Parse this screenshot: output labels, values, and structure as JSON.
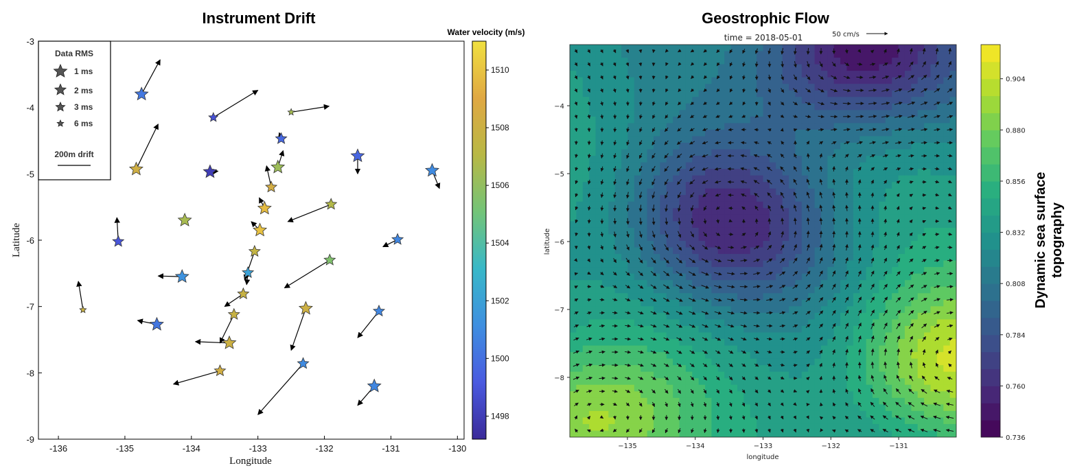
{
  "chart_data": [
    {
      "type": "scatter",
      "title": "Instrument Drift",
      "xlabel": "Longitude",
      "ylabel": "Latitude",
      "xlim": [
        -136.3,
        -129.9
      ],
      "ylim": [
        -9,
        -3
      ],
      "x_ticks": [
        "-136",
        "-135",
        "-134",
        "-133",
        "-132",
        "-131",
        "-130"
      ],
      "y_ticks": [
        "-3",
        "-4",
        "-5",
        "-6",
        "-7",
        "-8",
        "-9"
      ],
      "grid": false,
      "legend": {
        "placement": "top-left",
        "title": "Data RMS",
        "entries": [
          "1 ms",
          "2 ms",
          "3 ms",
          "6 ms"
        ],
        "drift_label": "200m drift"
      },
      "colorbar": {
        "label": "Water velocity (m/s)",
        "range": [
          1497.2,
          1511.0
        ],
        "ticks": [
          "1498",
          "1500",
          "1502",
          "1504",
          "1506",
          "1508",
          "1510"
        ],
        "colors": [
          "#3a2a99",
          "#4a5ae0",
          "#3f8fe0",
          "#38b8c8",
          "#73c478",
          "#b8b845",
          "#e0a843",
          "#f0e040"
        ]
      },
      "points": [
        {
          "lon": -134.75,
          "lat": -3.8,
          "velocity": 1500.3,
          "rms": 1,
          "drift_end": [
            -134.47,
            -3.28
          ]
        },
        {
          "lon": -133.67,
          "lat": -4.15,
          "velocity": 1498.8,
          "rms": 3,
          "drift_end": [
            -133.0,
            -3.74
          ]
        },
        {
          "lon": -132.5,
          "lat": -4.07,
          "velocity": 1506.5,
          "rms": 6,
          "drift_end": [
            -131.93,
            -3.98
          ]
        },
        {
          "lon": -134.83,
          "lat": -4.93,
          "velocity": 1508.2,
          "rms": 1,
          "drift_end": [
            -134.5,
            -4.25
          ]
        },
        {
          "lon": -133.72,
          "lat": -4.97,
          "velocity": 1498.0,
          "rms": 1,
          "drift_end": [
            -133.6,
            -4.96
          ]
        },
        {
          "lon": -132.65,
          "lat": -4.47,
          "velocity": 1499.7,
          "rms": 2,
          "drift_end": [
            -132.68,
            -4.38
          ]
        },
        {
          "lon": -132.7,
          "lat": -4.9,
          "velocity": 1506.3,
          "rms": 1,
          "drift_end": [
            -132.62,
            -4.65
          ]
        },
        {
          "lon": -132.8,
          "lat": -5.2,
          "velocity": 1508.4,
          "rms": 2,
          "drift_end": [
            -132.87,
            -4.88
          ]
        },
        {
          "lon": -132.9,
          "lat": -5.52,
          "velocity": 1509.7,
          "rms": 1,
          "drift_end": [
            -132.98,
            -5.36
          ]
        },
        {
          "lon": -131.5,
          "lat": -4.73,
          "velocity": 1499.6,
          "rms": 1,
          "drift_end": [
            -131.5,
            -5.0
          ]
        },
        {
          "lon": -130.38,
          "lat": -4.95,
          "velocity": 1501.0,
          "rms": 1,
          "drift_end": [
            -130.27,
            -5.22
          ]
        },
        {
          "lon": -131.9,
          "lat": -5.46,
          "velocity": 1506.9,
          "rms": 2,
          "drift_end": [
            -132.55,
            -5.72
          ]
        },
        {
          "lon": -134.1,
          "lat": -5.7,
          "velocity": 1506.6,
          "rms": 1,
          "drift_end": [
            -134.1,
            -5.7
          ]
        },
        {
          "lon": -132.97,
          "lat": -5.85,
          "velocity": 1509.9,
          "rms": 1,
          "drift_end": [
            -133.1,
            -5.72
          ]
        },
        {
          "lon": -135.1,
          "lat": -6.02,
          "velocity": 1499.0,
          "rms": 2,
          "drift_end": [
            -135.12,
            -5.66
          ]
        },
        {
          "lon": -133.05,
          "lat": -6.17,
          "velocity": 1507.6,
          "rms": 2,
          "drift_end": [
            -133.2,
            -6.6
          ]
        },
        {
          "lon": -130.9,
          "lat": -5.99,
          "velocity": 1500.8,
          "rms": 2,
          "drift_end": [
            -131.12,
            -6.1
          ]
        },
        {
          "lon": -131.92,
          "lat": -6.3,
          "velocity": 1505.5,
          "rms": 2,
          "drift_end": [
            -132.6,
            -6.72
          ]
        },
        {
          "lon": -134.14,
          "lat": -6.55,
          "velocity": 1501.3,
          "rms": 1,
          "drift_end": [
            -134.5,
            -6.54
          ]
        },
        {
          "lon": -133.15,
          "lat": -6.49,
          "velocity": 1502.0,
          "rms": 2,
          "drift_end": [
            -133.17,
            -6.67
          ]
        },
        {
          "lon": -133.22,
          "lat": -6.81,
          "velocity": 1507.8,
          "rms": 2,
          "drift_end": [
            -133.5,
            -7.0
          ]
        },
        {
          "lon": -135.63,
          "lat": -7.05,
          "velocity": 1507.9,
          "rms": 6,
          "drift_end": [
            -135.7,
            -6.62
          ]
        },
        {
          "lon": -134.52,
          "lat": -7.27,
          "velocity": 1500.2,
          "rms": 1,
          "drift_end": [
            -134.81,
            -7.21
          ]
        },
        {
          "lon": -133.36,
          "lat": -7.12,
          "velocity": 1507.8,
          "rms": 2,
          "drift_end": [
            -133.57,
            -7.55
          ]
        },
        {
          "lon": -132.28,
          "lat": -7.03,
          "velocity": 1508.1,
          "rms": 1,
          "drift_end": [
            -132.5,
            -7.66
          ]
        },
        {
          "lon": -131.18,
          "lat": -7.07,
          "velocity": 1500.8,
          "rms": 2,
          "drift_end": [
            -131.5,
            -7.47
          ]
        },
        {
          "lon": -133.43,
          "lat": -7.55,
          "velocity": 1508.0,
          "rms": 1,
          "drift_end": [
            -133.94,
            -7.53
          ]
        },
        {
          "lon": -133.57,
          "lat": -7.97,
          "velocity": 1508.3,
          "rms": 2,
          "drift_end": [
            -134.27,
            -8.17
          ]
        },
        {
          "lon": -132.32,
          "lat": -7.86,
          "velocity": 1501.0,
          "rms": 2,
          "drift_end": [
            -133.0,
            -8.63
          ]
        },
        {
          "lon": -131.25,
          "lat": -8.2,
          "velocity": 1500.8,
          "rms": 1,
          "drift_end": [
            -131.5,
            -8.49
          ]
        }
      ]
    },
    {
      "type": "heatmap",
      "title": "Geostrophic Flow",
      "subtitle": "time = 2018-05-01",
      "xlabel": "longitude",
      "ylabel": "latitude",
      "xlim": [
        -135.85,
        -130.15
      ],
      "ylim": [
        -8.88,
        -3.1
      ],
      "x_ticks": [
        "-135",
        "-134",
        "-133",
        "-132",
        "-131"
      ],
      "y_ticks": [
        "-4",
        "-5",
        "-6",
        "-7",
        "-8"
      ],
      "quiver_key": "50 cm/s",
      "colorbar": {
        "label": "Dynamic sea surface topography",
        "range": [
          0.736,
          0.92
        ],
        "ticks": [
          "0.736",
          "0.760",
          "0.784",
          "0.808",
          "0.832",
          "0.856",
          "0.880",
          "0.904"
        ],
        "colors": [
          "#440154",
          "#472d7b",
          "#3b528b",
          "#2c728e",
          "#21918c",
          "#28ae80",
          "#5ec962",
          "#addc30",
          "#fde725"
        ]
      },
      "field_centers": [
        {
          "lon": -131.6,
          "lat": -3.2,
          "strength": 1.2,
          "type": "low"
        },
        {
          "lon": -133.6,
          "lat": -5.75,
          "strength": 0.9,
          "type": "low"
        },
        {
          "lon": -135.6,
          "lat": -8.7,
          "strength": 0.9,
          "type": "high"
        },
        {
          "lon": -130.3,
          "lat": -7.8,
          "strength": 0.9,
          "type": "high"
        }
      ]
    }
  ]
}
